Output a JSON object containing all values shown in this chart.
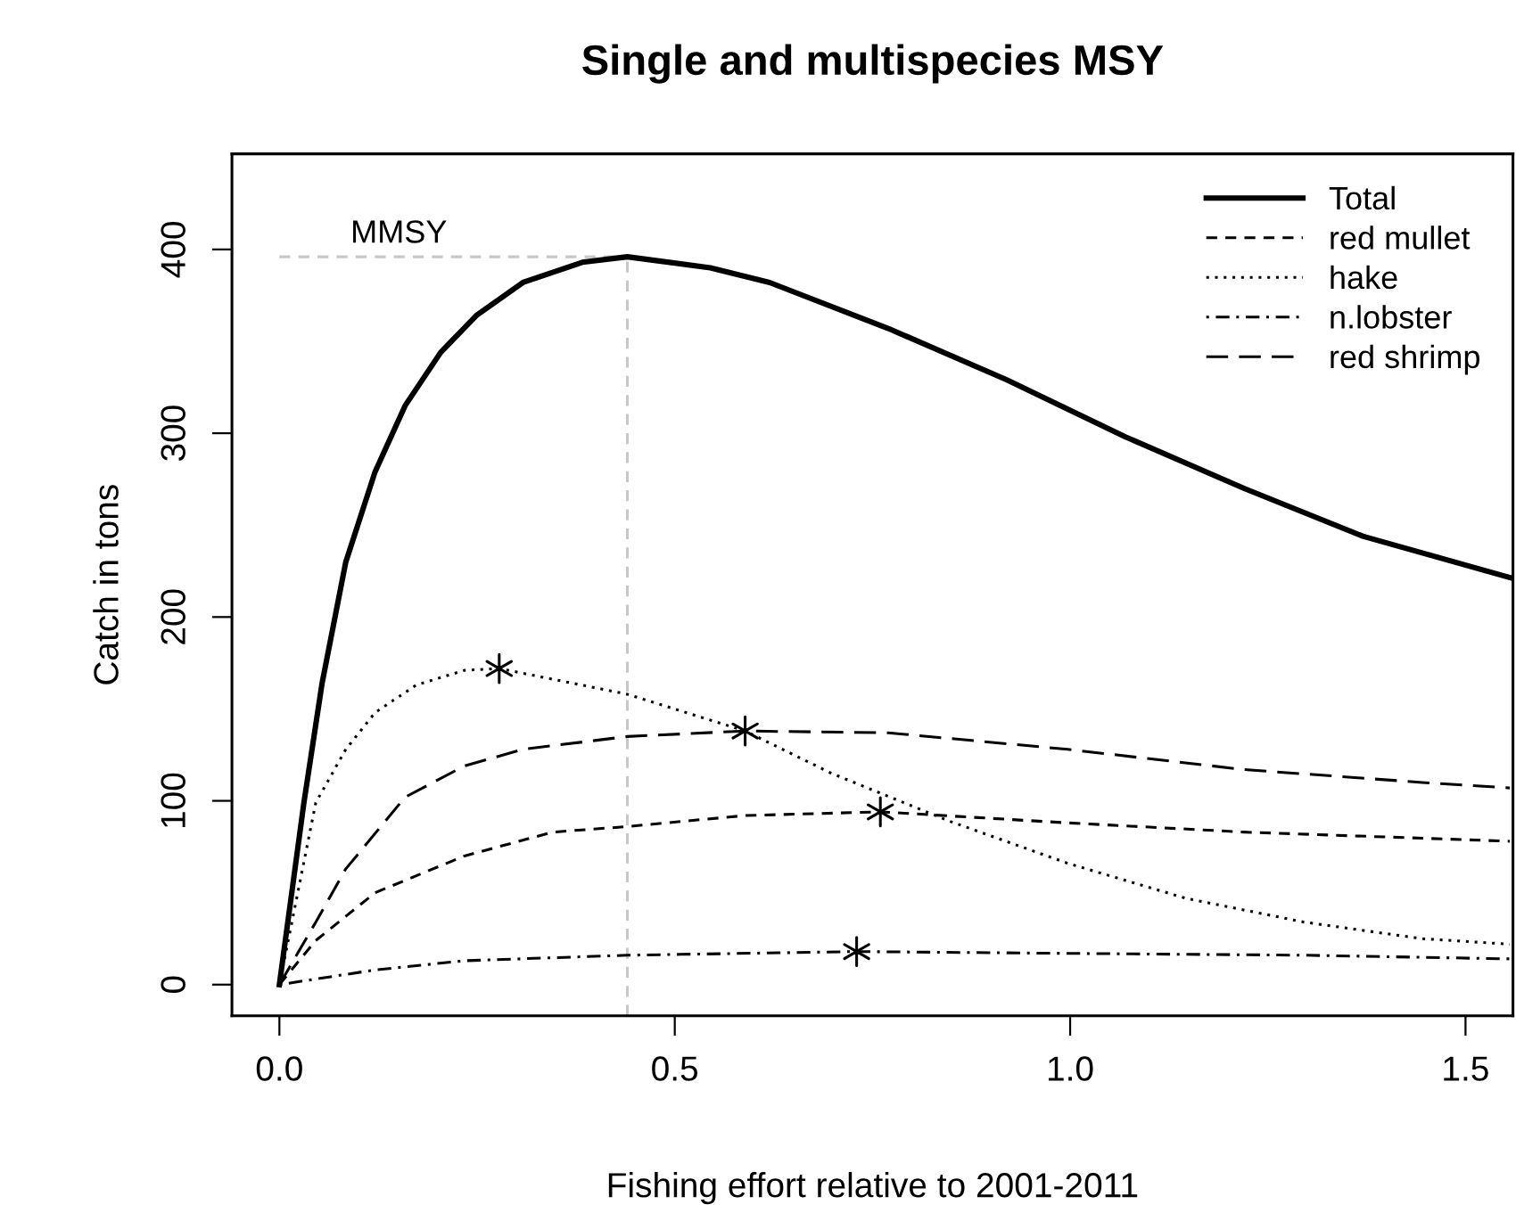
{
  "chart_data": {
    "type": "line",
    "title": "Single and multispecies MSY",
    "xlabel": "Fishing effort relative to 2001-2011",
    "ylabel": "Catch in tons",
    "xlim": [
      -0.06,
      1.56
    ],
    "ylim": [
      -17,
      452
    ],
    "xticks": [
      {
        "value": 0,
        "label": "0.0"
      },
      {
        "value": 0.5,
        "label": "0.5"
      },
      {
        "value": 1,
        "label": "1.0"
      },
      {
        "value": 1.5,
        "label": "1.5"
      }
    ],
    "yticks": [
      0,
      100,
      200,
      300,
      400
    ],
    "grid": false,
    "legend": "top right",
    "marker": "none",
    "series": [
      {
        "name": "Total",
        "color": "#000000",
        "line_style": "solid",
        "x": [
          0,
          0.031,
          0.054,
          0.084,
          0.121,
          0.159,
          0.204,
          0.249,
          0.308,
          0.383,
          0.44,
          0.545,
          0.62,
          0.77,
          0.92,
          1.07,
          1.22,
          1.37,
          1.56
        ],
        "values": [
          0,
          99,
          164,
          230,
          279,
          315,
          344,
          364,
          382,
          393,
          396,
          390,
          382,
          357,
          329,
          298,
          270,
          244,
          221
        ]
      },
      {
        "name": "red mullet",
        "color": "#000000",
        "line_style": "dashed",
        "x": [
          0,
          0.046,
          0.121,
          0.234,
          0.346,
          0.44,
          0.589,
          0.76,
          0.997,
          1.22,
          1.556
        ],
        "values": [
          0,
          24,
          50,
          70,
          83,
          86,
          92,
          94,
          88,
          83,
          78
        ]
      },
      {
        "name": "hake",
        "color": "#000000",
        "line_style": "dotted",
        "x": [
          0,
          0.046,
          0.084,
          0.121,
          0.173,
          0.234,
          0.278,
          0.44,
          0.589,
          0.698,
          0.847,
          0.997,
          1.146,
          1.296,
          1.445,
          1.556
        ],
        "values": [
          0,
          99,
          128,
          148,
          163,
          171,
          172,
          158,
          138,
          115,
          89,
          66,
          47,
          34,
          25,
          22
        ]
      },
      {
        "name": "n.lobster",
        "color": "#000000",
        "line_style": "dashdot",
        "x": [
          0,
          0.121,
          0.234,
          0.44,
          0.73,
          0.997,
          1.296,
          1.556
        ],
        "values": [
          0,
          8,
          13,
          16,
          18,
          17,
          16,
          14
        ]
      },
      {
        "name": "red shrimp",
        "color": "#000000",
        "line_style": "longdash",
        "x": [
          0,
          0.046,
          0.084,
          0.159,
          0.234,
          0.308,
          0.44,
          0.589,
          0.77,
          0.997,
          1.22,
          1.445,
          1.556
        ],
        "values": [
          0,
          34,
          63,
          102,
          119,
          128,
          135,
          138,
          137,
          128,
          117,
          110,
          107
        ]
      },
      {
        "type": "scatter",
        "marker": "cross",
        "color": "#000000",
        "x": [
          0.278,
          0.589,
          0.76,
          0.73
        ],
        "values": [
          172,
          138,
          94,
          18
        ]
      }
    ],
    "ref_lines": [
      {
        "axis": "y",
        "value": 396,
        "label": "MMSY",
        "color": "#c8c8c8",
        "line_style": "dashed"
      },
      {
        "axis": "x",
        "value": 0.44,
        "color": "#c8c8c8",
        "line_style": "dashed"
      }
    ]
  }
}
